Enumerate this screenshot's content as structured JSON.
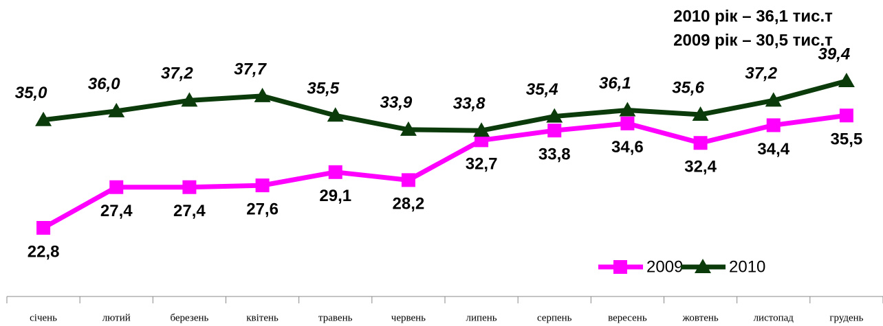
{
  "chart_data": {
    "type": "line",
    "annotations": [
      "2010 рік – 36,1 тис.т",
      "2009 рік – 30,5 тис.т"
    ],
    "categories": [
      "січень",
      "лютий",
      "березень",
      "квітень",
      "травень",
      "червень",
      "липень",
      "серпень",
      "вересень",
      "жовтень",
      "листопад",
      "грудень"
    ],
    "series": [
      {
        "name": "2009",
        "color": "#ff00ff",
        "marker": "square",
        "values": [
          22.8,
          27.4,
          27.4,
          27.6,
          29.1,
          28.2,
          32.7,
          33.8,
          34.6,
          32.4,
          34.4,
          35.5
        ],
        "value_labels": [
          "22,8",
          "27,4",
          "27,4",
          "27,6",
          "29,1",
          "28,2",
          "32,7",
          "33,8",
          "34,6",
          "32,4",
          "34,4",
          "35,5"
        ]
      },
      {
        "name": "2010",
        "color": "#0b3a0b",
        "marker": "triangle",
        "values": [
          35.0,
          36.0,
          37.2,
          37.7,
          35.5,
          33.9,
          33.8,
          35.4,
          36.1,
          35.6,
          37.2,
          39.4
        ],
        "value_labels": [
          "35,0",
          "36,0",
          "37,2",
          "37,7",
          "35,5",
          "33,9",
          "33,8",
          "35,4",
          "36,1",
          "35,6",
          "37,2",
          "39,4"
        ]
      }
    ],
    "legend": "lower right"
  }
}
